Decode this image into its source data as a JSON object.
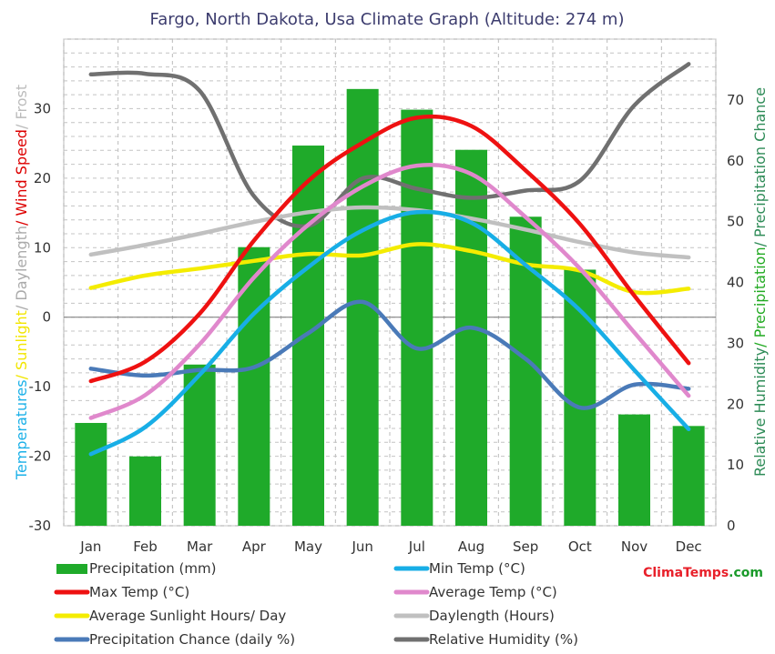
{
  "chart_data": {
    "type": "bar+line",
    "title": "Fargo, North Dakota, Usa Climate Graph (Altitude: 274 m)",
    "categories": [
      "Jan",
      "Feb",
      "Mar",
      "Apr",
      "May",
      "Jun",
      "Jul",
      "Aug",
      "Sep",
      "Oct",
      "Nov",
      "Dec"
    ],
    "left_axis": {
      "ticks": [
        "30",
        "20",
        "10",
        "0",
        "-10",
        "-20",
        "-30"
      ],
      "ylim": [
        -30,
        40
      ],
      "label_parts": [
        {
          "text": "Temperatures",
          "color": "#1ab0e8"
        },
        {
          "text": "/ Sunlight",
          "color": "#f2e600"
        },
        {
          "text": "/ Daylength",
          "color": "#aaaaaa"
        },
        {
          "text": "/ Wind Speed",
          "color": "#dd0000"
        },
        {
          "text": "/ Frost",
          "color": "#bbbbbb"
        }
      ]
    },
    "right_axis": {
      "ticks": [
        "70",
        "60",
        "50",
        "40",
        "30",
        "20",
        "10",
        "0"
      ],
      "ylim": [
        0,
        80
      ],
      "label_parts": [
        {
          "text": "Relative Humidity",
          "color": "#2e8b57"
        },
        {
          "text": "/ Precipitation",
          "color": "#22aa22"
        },
        {
          "text": "/ Precipitation Chance",
          "color": "#2e8b57"
        }
      ]
    },
    "bars": {
      "name": "Precipitation (mm)",
      "color": "#1faa2a",
      "axis": "right",
      "values": [
        16.9,
        11.4,
        26.5,
        45.8,
        62.5,
        71.8,
        68.4,
        61.8,
        50.8,
        42.1,
        18.3,
        16.4
      ]
    },
    "series": [
      {
        "name": "Relative Humidity (%)",
        "color": "#707070",
        "axis": "right",
        "values": [
          74.2,
          74.3,
          71.5,
          54.2,
          49.3,
          57.1,
          55.4,
          53.9,
          55.1,
          56.7,
          69.1,
          75.9
        ]
      },
      {
        "name": "Daylength (Hours)",
        "color": "#c0c0c0",
        "axis": "left",
        "values": [
          9.0,
          10.4,
          12.0,
          13.7,
          15.1,
          15.8,
          15.4,
          14.2,
          12.6,
          10.8,
          9.3,
          8.6
        ]
      },
      {
        "name": "Average Sunlight Hours/ Day",
        "color": "#f4ec00",
        "axis": "left",
        "values": [
          4.2,
          6.0,
          7.0,
          8.1,
          9.1,
          8.9,
          10.5,
          9.5,
          7.6,
          6.7,
          3.6,
          4.1
        ]
      },
      {
        "name": "Precipitation Chance (daily %)",
        "color": "#4a7ab8",
        "axis": "left",
        "values": [
          -7.4,
          -8.4,
          -7.6,
          -7.2,
          -2.3,
          2.2,
          -4.5,
          -1.5,
          -6.0,
          -13.0,
          -9.7,
          -10.3
        ]
      },
      {
        "name": "Min Temp (°C)",
        "color": "#18aee6",
        "axis": "left",
        "values": [
          -19.7,
          -15.8,
          -8.3,
          0.5,
          7.2,
          12.5,
          15.1,
          13.6,
          7.5,
          1.0,
          -7.6,
          -16.1
        ]
      },
      {
        "name": "Average Temp (°C)",
        "color": "#e088cc",
        "axis": "left",
        "values": [
          -14.5,
          -11.2,
          -3.9,
          5.7,
          13.3,
          18.8,
          21.8,
          20.6,
          14.4,
          7.0,
          -2.2,
          -11.3
        ]
      },
      {
        "name": "Max Temp (°C)",
        "color": "#ee1111",
        "axis": "left",
        "values": [
          -9.2,
          -6.4,
          0.5,
          11.0,
          19.6,
          25.1,
          28.7,
          27.5,
          21.1,
          13.4,
          3.1,
          -6.6
        ]
      }
    ],
    "legend": {
      "placement": "bottom",
      "items": [
        {
          "label": "Precipitation (mm)",
          "color": "#1faa2a",
          "kind": "bar"
        },
        {
          "label": "Min Temp (°C)",
          "color": "#18aee6",
          "kind": "line"
        },
        {
          "label": "Max Temp (°C)",
          "color": "#ee1111",
          "kind": "line"
        },
        {
          "label": "Average Temp (°C)",
          "color": "#e088cc",
          "kind": "line"
        },
        {
          "label": "Average Sunlight Hours/ Day",
          "color": "#f4ec00",
          "kind": "line"
        },
        {
          "label": "Daylength (Hours)",
          "color": "#c0c0c0",
          "kind": "line"
        },
        {
          "label": "Precipitation Chance (daily %)",
          "color": "#4a7ab8",
          "kind": "line"
        },
        {
          "label": "Relative Humidity (%)",
          "color": "#707070",
          "kind": "line"
        }
      ]
    },
    "grid": true
  },
  "brand": {
    "parts": [
      {
        "text": "Clima",
        "color": "#e8202a"
      },
      {
        "text": "Temps",
        "color": "#e8202a"
      },
      {
        "text": ".com",
        "color": "#1a9a2a"
      }
    ]
  }
}
